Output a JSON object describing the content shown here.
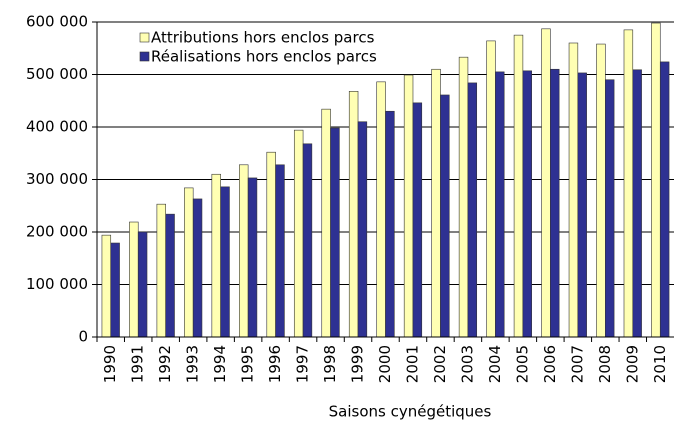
{
  "chart_data": {
    "type": "bar",
    "x_label": "Saisons cynégétiques",
    "categories": [
      "1990",
      "1991",
      "1992",
      "1993",
      "1994",
      "1995",
      "1996",
      "1997",
      "1998",
      "1999",
      "2000",
      "2001",
      "2002",
      "2003",
      "2004",
      "2005",
      "2006",
      "2007",
      "2008",
      "2009",
      "2010"
    ],
    "series": [
      {
        "name": "Attributions hors enclos parcs",
        "color": "#ffffb3",
        "values": [
          194000,
          219000,
          253000,
          284000,
          310000,
          328000,
          352000,
          394000,
          434000,
          468000,
          486000,
          499000,
          510000,
          533000,
          564000,
          575000,
          587000,
          560000,
          558000,
          585000,
          598000
        ]
      },
      {
        "name": "Réalisations hors enclos parcs",
        "color": "#2e3192",
        "values": [
          179000,
          200000,
          234000,
          263000,
          286000,
          303000,
          328000,
          368000,
          398000,
          410000,
          430000,
          446000,
          461000,
          484000,
          505000,
          507000,
          510000,
          503000,
          490000,
          509000,
          524000
        ]
      }
    ],
    "ylim": [
      0,
      600000
    ],
    "yticks": [
      0,
      {
        "value": 100000,
        "label": "100 000"
      },
      {
        "value": 200000,
        "label": "200 000"
      },
      {
        "value": 300000,
        "label": "300 000"
      },
      {
        "value": 400000,
        "label": "400 000"
      },
      {
        "value": 500000,
        "label": "500 000"
      },
      {
        "value": 600000,
        "label": "600 000"
      }
    ],
    "grid": true,
    "legend": "top-left"
  }
}
